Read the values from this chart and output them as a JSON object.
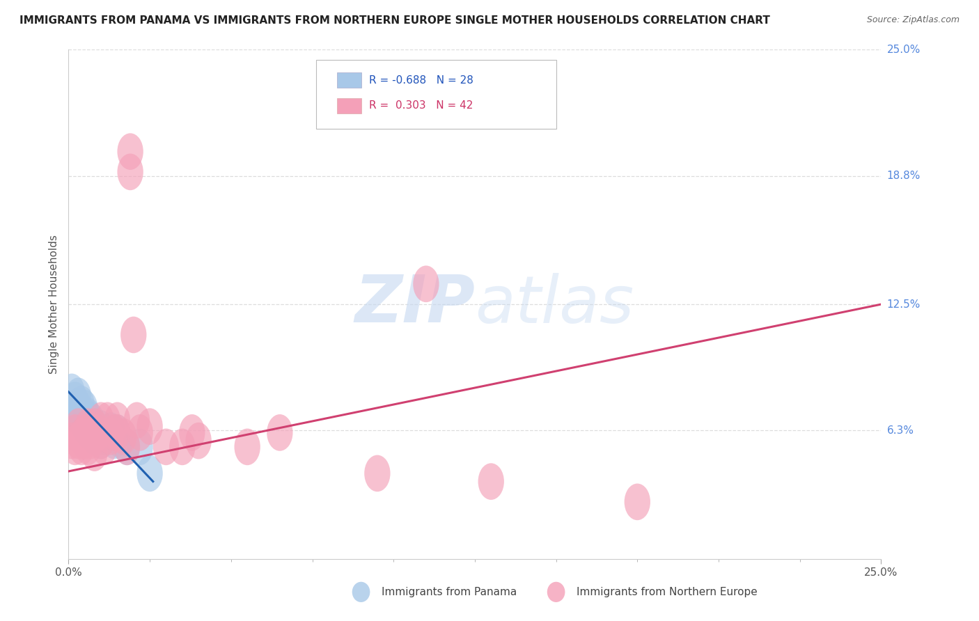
{
  "title": "IMMIGRANTS FROM PANAMA VS IMMIGRANTS FROM NORTHERN EUROPE SINGLE MOTHER HOUSEHOLDS CORRELATION CHART",
  "source": "Source: ZipAtlas.com",
  "ylabel": "Single Mother Households",
  "xlim": [
    0.0,
    0.25
  ],
  "ylim": [
    0.0,
    0.25
  ],
  "ytick_labels": [
    "6.3%",
    "12.5%",
    "18.8%",
    "25.0%"
  ],
  "ytick_values": [
    0.063,
    0.125,
    0.188,
    0.25
  ],
  "panama_color": "#a8c8e8",
  "northern_europe_color": "#f4a0b8",
  "trendline_panama_color": "#2060b0",
  "trendline_ne_color": "#d04070",
  "watermark_zip": "ZIP",
  "watermark_atlas": "atlas",
  "panama_R": "-0.688",
  "panama_N": "28",
  "ne_R": "0.303",
  "ne_N": "42",
  "panama_points": [
    [
      0.001,
      0.082
    ],
    [
      0.002,
      0.078
    ],
    [
      0.002,
      0.073
    ],
    [
      0.003,
      0.08
    ],
    [
      0.003,
      0.075
    ],
    [
      0.003,
      0.07
    ],
    [
      0.004,
      0.076
    ],
    [
      0.004,
      0.072
    ],
    [
      0.005,
      0.074
    ],
    [
      0.005,
      0.068
    ],
    [
      0.005,
      0.065
    ],
    [
      0.006,
      0.07
    ],
    [
      0.006,
      0.063
    ],
    [
      0.007,
      0.068
    ],
    [
      0.007,
      0.063
    ],
    [
      0.008,
      0.065
    ],
    [
      0.008,
      0.06
    ],
    [
      0.009,
      0.062
    ],
    [
      0.01,
      0.064
    ],
    [
      0.01,
      0.058
    ],
    [
      0.011,
      0.06
    ],
    [
      0.013,
      0.063
    ],
    [
      0.014,
      0.058
    ],
    [
      0.015,
      0.062
    ],
    [
      0.016,
      0.058
    ],
    [
      0.018,
      0.055
    ],
    [
      0.022,
      0.055
    ],
    [
      0.025,
      0.042
    ]
  ],
  "northern_europe_points": [
    [
      0.001,
      0.058
    ],
    [
      0.002,
      0.062
    ],
    [
      0.002,
      0.055
    ],
    [
      0.003,
      0.065
    ],
    [
      0.003,
      0.058
    ],
    [
      0.004,
      0.06
    ],
    [
      0.004,
      0.055
    ],
    [
      0.005,
      0.062
    ],
    [
      0.005,
      0.058
    ],
    [
      0.006,
      0.065
    ],
    [
      0.006,
      0.055
    ],
    [
      0.007,
      0.06
    ],
    [
      0.007,
      0.058
    ],
    [
      0.008,
      0.065
    ],
    [
      0.008,
      0.052
    ],
    [
      0.009,
      0.062
    ],
    [
      0.01,
      0.068
    ],
    [
      0.01,
      0.058
    ],
    [
      0.011,
      0.055
    ],
    [
      0.012,
      0.068
    ],
    [
      0.013,
      0.06
    ],
    [
      0.014,
      0.062
    ],
    [
      0.015,
      0.068
    ],
    [
      0.015,
      0.062
    ],
    [
      0.017,
      0.06
    ],
    [
      0.018,
      0.055
    ],
    [
      0.019,
      0.2
    ],
    [
      0.019,
      0.19
    ],
    [
      0.02,
      0.11
    ],
    [
      0.021,
      0.068
    ],
    [
      0.022,
      0.062
    ],
    [
      0.025,
      0.065
    ],
    [
      0.03,
      0.055
    ],
    [
      0.035,
      0.055
    ],
    [
      0.038,
      0.062
    ],
    [
      0.04,
      0.058
    ],
    [
      0.055,
      0.055
    ],
    [
      0.065,
      0.062
    ],
    [
      0.095,
      0.042
    ],
    [
      0.11,
      0.135
    ],
    [
      0.13,
      0.038
    ],
    [
      0.175,
      0.028
    ]
  ],
  "panama_trend_x": [
    0.0,
    0.026
  ],
  "panama_trend_y": [
    0.082,
    0.038
  ],
  "ne_trend_x": [
    0.0,
    0.25
  ],
  "ne_trend_y": [
    0.043,
    0.125
  ],
  "background_color": "#ffffff",
  "grid_color": "#dddddd"
}
